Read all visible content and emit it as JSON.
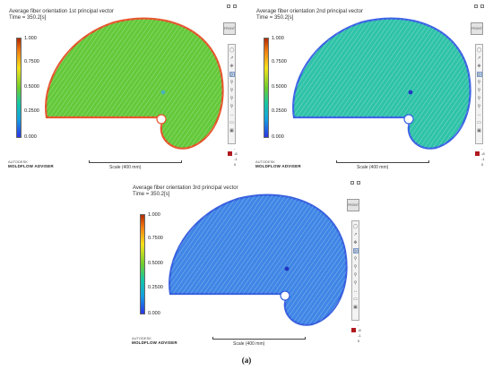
{
  "panels": [
    {
      "id": "p1",
      "title": "Average fiber orientation 1st principal vector",
      "time": "Time = 350.2[s]",
      "part_color": "#63c93a",
      "edge_color": "#e4552b",
      "gate_color": "#4ab2b8"
    },
    {
      "id": "p2",
      "title": "Average fiber orientation 2nd principal vector",
      "time": "Time = 350.2[s]",
      "part_color": "#2fc3a8",
      "edge_color": "#3a63e3",
      "gate_color": "#2438c9"
    },
    {
      "id": "p3",
      "title": "Average fiber orientation 3rd principal vector",
      "time": "Time = 350.2[s]",
      "part_color": "#3f86e6",
      "edge_color": "#3560df",
      "gate_color": "#2135bf"
    }
  ],
  "legend": {
    "labels": [
      "1.000",
      "0.7500",
      "0.5000",
      "0.2500",
      "0.000"
    ]
  },
  "brand": {
    "line1": "AUTODESK",
    "line2": "MOLDFLOW ADVISER"
  },
  "scale": {
    "label": "Scale (400 mm)"
  },
  "viewcube": {
    "label": "FRONT"
  },
  "triad": {
    "top": "-",
    "mid": "-8",
    "low": "-1",
    "bottom": "0"
  },
  "caption": "(a)"
}
